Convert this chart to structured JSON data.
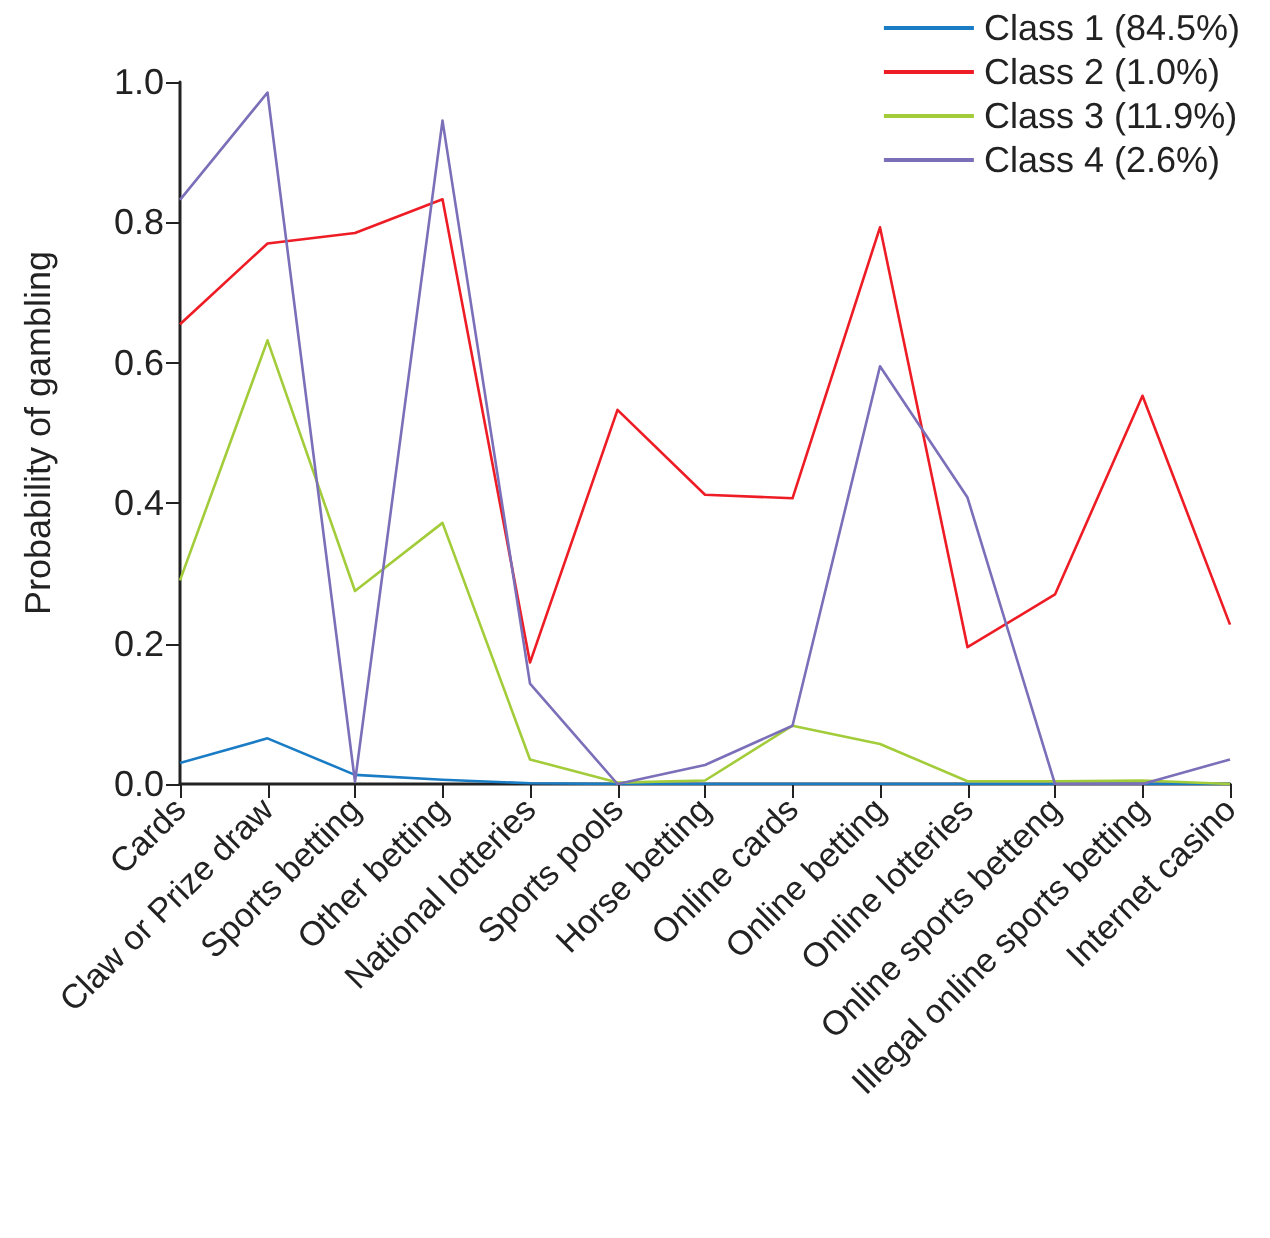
{
  "chart_data": {
    "type": "line",
    "ylabel": "Probability of gambling",
    "categories": [
      "Cards",
      "Claw or Prize draw",
      "Sports betting",
      "Other betting",
      "National lotteries",
      "Sports pools",
      "Horse betting",
      "Online cards",
      "Online betting",
      "Online lotteries",
      "Online sports betteng",
      "Illegal online sports betting",
      "Internet casino"
    ],
    "series": [
      {
        "name": "Class 1 (84.5%)",
        "color": "#1a7cc4",
        "values": [
          0.03,
          0.065,
          0.013,
          0.006,
          0.001,
          0,
          0,
          0,
          0,
          0,
          0,
          0,
          0
        ]
      },
      {
        "name": "Class 2 (1.0%)",
        "color": "#ee1c25",
        "values": [
          0.655,
          0.77,
          0.785,
          0.833,
          0.173,
          0.533,
          0.412,
          0.407,
          0.793,
          0.195,
          0.27,
          0.553,
          0.227
        ]
      },
      {
        "name": "Class 3 (11.9%)",
        "color": "#a3cc3a",
        "values": [
          0.29,
          0.632,
          0.275,
          0.372,
          0.035,
          0.002,
          0.005,
          0.083,
          0.057,
          0.004,
          0.004,
          0.005,
          0
        ]
      },
      {
        "name": "Class 4 (2.6%)",
        "color": "#7a6fb8",
        "values": [
          0.832,
          0.985,
          0.003,
          0.945,
          0.143,
          0,
          0.027,
          0.083,
          0.595,
          0.408,
          0,
          0,
          0.035
        ]
      }
    ],
    "ylim": [
      0,
      1
    ],
    "yticks": [
      {
        "value": 0,
        "label": "0.0"
      },
      {
        "value": 0.2,
        "label": "0.2"
      },
      {
        "value": 0.4,
        "label": "0.4"
      },
      {
        "value": 0.6,
        "label": "0.6"
      },
      {
        "value": 0.8,
        "label": "0.8"
      },
      {
        "value": 1,
        "label": "1.0"
      }
    ],
    "grid": false,
    "legend": "top right",
    "marker": "none",
    "line_style": "solid"
  }
}
